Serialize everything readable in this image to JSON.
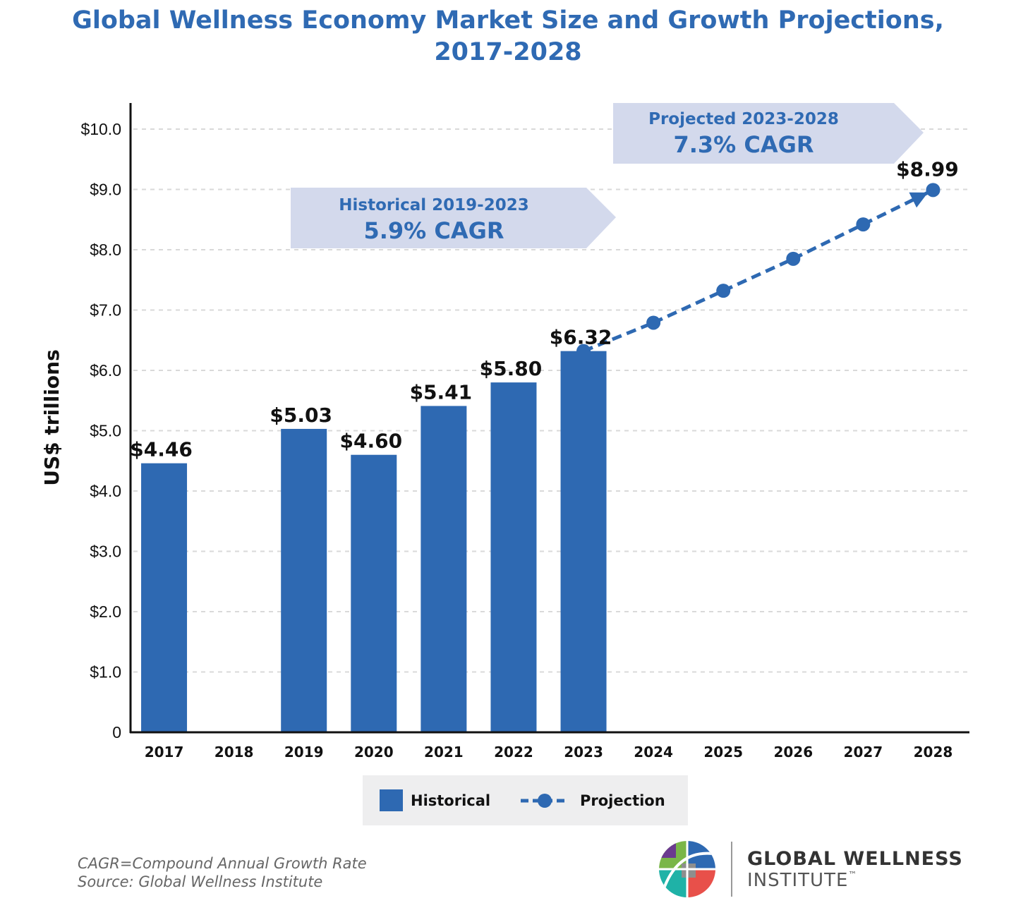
{
  "chart_data": {
    "type": "bar",
    "title": "Global Wellness Economy Market Size and Growth Projections,",
    "subtitle": "2017-2028",
    "ylabel": "US$ trillions",
    "xlabel": "",
    "ylim": [
      0,
      10
    ],
    "grid": true,
    "y_ticks": [
      {
        "value": 0,
        "label": "0"
      },
      {
        "value": 1,
        "label": "$1.0"
      },
      {
        "value": 2,
        "label": "$2.0"
      },
      {
        "value": 3,
        "label": "$3.0"
      },
      {
        "value": 4,
        "label": "$4.0"
      },
      {
        "value": 5,
        "label": "$5.0"
      },
      {
        "value": 6,
        "label": "$6.0"
      },
      {
        "value": 7,
        "label": "$7.0"
      },
      {
        "value": 8,
        "label": "$8.0"
      },
      {
        "value": 9,
        "label": "$9.0"
      },
      {
        "value": 10,
        "label": "$10.0"
      }
    ],
    "categories": [
      "2017",
      "2018",
      "2019",
      "2020",
      "2021",
      "2022",
      "2023",
      "2024",
      "2025",
      "2026",
      "2027",
      "2028"
    ],
    "series": [
      {
        "name": "Historical",
        "type": "bar",
        "color": "#2e69b2",
        "values": [
          4.46,
          null,
          5.03,
          4.6,
          5.41,
          5.8,
          6.32,
          null,
          null,
          null,
          null,
          null
        ],
        "labels": [
          "$4.46",
          "",
          "$5.03",
          "$4.60",
          "$5.41",
          "$5.80",
          "$6.32",
          "",
          "",
          "",
          "",
          ""
        ]
      },
      {
        "name": "Projection",
        "type": "line",
        "style": "dashed",
        "color": "#2e69b2",
        "values": [
          null,
          null,
          null,
          null,
          null,
          null,
          6.32,
          6.79,
          7.32,
          7.85,
          8.42,
          8.99
        ],
        "labels": [
          "",
          "",
          "",
          "",
          "",
          "",
          "",
          "",
          "",
          "",
          "",
          "$8.99"
        ]
      }
    ],
    "annotations": [
      {
        "period": "Historical 2019-2023",
        "rate": "5.9% CAGR",
        "color": "#d3d9ec"
      },
      {
        "period": "Projected 2023-2028",
        "rate": "7.3% CAGR",
        "color": "#d3d9ec"
      }
    ],
    "legend": {
      "placement": "bottom-center",
      "items": [
        "Historical",
        "Projection"
      ]
    }
  },
  "footnotes": {
    "line1": "CAGR=Compound Annual Growth Rate",
    "line2": "Source: Global Wellness Institute"
  },
  "brand": {
    "line1": "GLOBAL WELLNESS",
    "line2": "INSTITUTE",
    "mark": "™"
  }
}
